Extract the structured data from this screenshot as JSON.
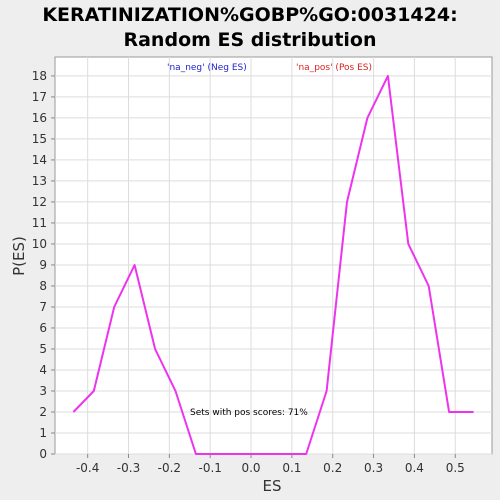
{
  "chart_data": {
    "type": "line",
    "title_line1": "KERATINIZATION%GOBP%GO:0031424:",
    "title_line2": "Random ES distribution",
    "xlabel": "ES",
    "ylabel": "P(ES)",
    "xlim": [
      -0.48,
      0.59
    ],
    "ylim": [
      0,
      18.9
    ],
    "x_ticks": [
      -0.4,
      -0.3,
      -0.2,
      -0.1,
      0.0,
      0.1,
      0.2,
      0.3,
      0.4,
      0.5
    ],
    "x_tick_labels": [
      "-0.4",
      "-0.3",
      "-0.2",
      "-0.1",
      "0.0",
      "0.1",
      "0.2",
      "0.3",
      "0.4",
      "0.5"
    ],
    "y_ticks": [
      0,
      1,
      2,
      3,
      4,
      5,
      6,
      7,
      8,
      9,
      10,
      11,
      12,
      13,
      14,
      15,
      16,
      17,
      18
    ],
    "y_tick_labels": [
      "0",
      "1",
      "2",
      "3",
      "4",
      "5",
      "6",
      "7",
      "8",
      "9",
      "10",
      "11",
      "12",
      "13",
      "14",
      "15",
      "16",
      "17",
      "18"
    ],
    "grid": true,
    "series": [
      {
        "color": "#ee33ee",
        "x": [
          -0.435,
          -0.385,
          -0.335,
          -0.285,
          -0.235,
          -0.185,
          -0.135,
          -0.085,
          -0.035,
          0.015,
          0.065,
          0.115,
          0.135,
          0.185,
          0.235,
          0.285,
          0.335,
          0.385,
          0.435,
          0.485,
          0.545
        ],
        "y": [
          2,
          3,
          7,
          9,
          5,
          3,
          0,
          0,
          0,
          0,
          0,
          0,
          0,
          3,
          12,
          16,
          18,
          10,
          8,
          2,
          2
        ]
      }
    ],
    "legend": [
      {
        "text": "'na_neg' (Neg ES)",
        "color": "#2222cc"
      },
      {
        "text": "'na_pos' (Pos ES)",
        "color": "#dd2222"
      }
    ],
    "annotation": "Sets with pos scores: 71%"
  }
}
